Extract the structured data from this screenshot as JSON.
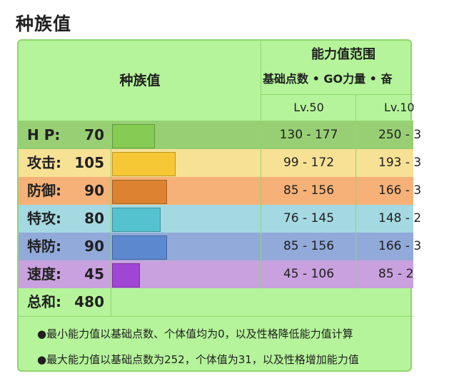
{
  "page_title": "种族值",
  "table": {
    "header_left": "种族值",
    "range_title": "能力值范围",
    "range_subtitle": "基础点数 • GO力量 • 奋",
    "lv50": "Lv.50",
    "lv100": "Lv.10",
    "colors": {
      "panel_bg": "#b5f49a",
      "border": "#8fd66f"
    },
    "rows": [
      {
        "name": "H P:",
        "value": "70",
        "base": 70,
        "range50": "130 - 177",
        "range100": "250 - 3",
        "bg": "#98cf75",
        "bar": "#86cc54"
      },
      {
        "name": "攻击:",
        "value": "105",
        "base": 105,
        "range50": "99 - 172",
        "range100": "193 - 3",
        "bg": "#f7e195",
        "bar": "#f6c835"
      },
      {
        "name": "防御:",
        "value": "90",
        "base": 90,
        "range50": "85 - 156",
        "range100": "166 - 3",
        "bg": "#f5b177",
        "bar": "#dc8230"
      },
      {
        "name": "特攻:",
        "value": "80",
        "base": 80,
        "range50": "76 - 145",
        "range100": "148 - 2",
        "bg": "#a4d9e2",
        "bar": "#55c2d0"
      },
      {
        "name": "特防:",
        "value": "90",
        "base": 90,
        "range50": "85 - 156",
        "range100": "166 - 3",
        "bg": "#91aad9",
        "bar": "#5b88cf"
      },
      {
        "name": "速度:",
        "value": "45",
        "base": 45,
        "range50": "45 - 106",
        "range100": "85 - 2",
        "bg": "#c8a1de",
        "bar": "#a045d4"
      }
    ],
    "total_label": "总和:",
    "total_value": "480"
  },
  "notes": [
    "●最小能力值以基础点数、个体值均为0，以及性格降低能力值计算",
    "●最大能力值以基础点数为252，个体值为31，以及性格增加能力值"
  ]
}
